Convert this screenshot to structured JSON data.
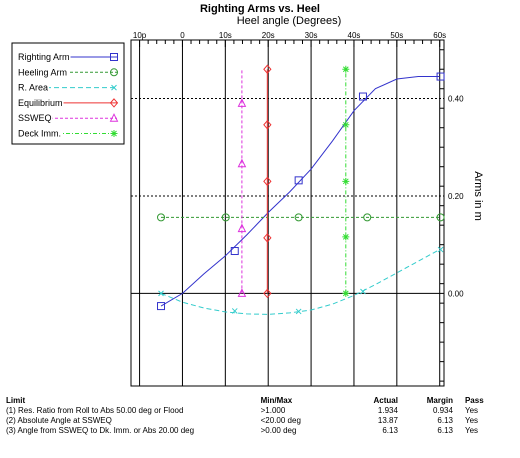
{
  "chart_data": {
    "type": "line",
    "title": "Righting Arms vs. Heel",
    "xlabel": "Heel angle (Degrees)",
    "ylabel": "Arms in m",
    "xlim": [
      -12,
      61
    ],
    "ylim": [
      -0.19,
      0.52
    ],
    "x_ticks": [
      {
        "value": -10,
        "label": "10p"
      },
      {
        "value": 0,
        "label": "0"
      },
      {
        "value": 10,
        "label": "10s"
      },
      {
        "value": 20,
        "label": "20s"
      },
      {
        "value": 30,
        "label": "30s"
      },
      {
        "value": 40,
        "label": "40s"
      },
      {
        "value": 50,
        "label": "50s"
      },
      {
        "value": 60,
        "label": "60s"
      }
    ],
    "y_ticks": [
      {
        "value": 0.0,
        "label": "0.00"
      },
      {
        "value": 0.2,
        "label": "0.20"
      },
      {
        "value": 0.4,
        "label": "0.40"
      }
    ],
    "grid": true,
    "legend_position": "top-left",
    "series": [
      {
        "name": "Righting Arm",
        "color": "#3333cc",
        "marker": "square",
        "dash": "",
        "curve": [
          [
            -5,
            -0.026
          ],
          [
            0,
            0
          ],
          [
            5,
            0.04
          ],
          [
            10,
            0.077
          ],
          [
            15,
            0.12
          ],
          [
            20,
            0.166
          ],
          [
            25,
            0.208
          ],
          [
            30,
            0.255
          ],
          [
            35,
            0.313
          ],
          [
            40,
            0.375
          ],
          [
            45,
            0.42
          ],
          [
            50,
            0.44
          ],
          [
            55,
            0.445
          ],
          [
            60,
            0.445
          ]
        ],
        "markers": [
          [
            -5,
            -0.026
          ],
          [
            12.2,
            0.087
          ],
          [
            27.1,
            0.232
          ],
          [
            42.1,
            0.404
          ],
          [
            60.2,
            0.445
          ]
        ]
      },
      {
        "name": "Heeling Arm",
        "color": "#339933",
        "marker": "circle",
        "dash": "3,2",
        "curve": [
          [
            -5,
            0.156
          ],
          [
            60,
            0.156
          ]
        ],
        "markers": [
          [
            -5,
            0.156
          ],
          [
            10.1,
            0.156
          ],
          [
            27.1,
            0.156
          ],
          [
            43.1,
            0.156
          ],
          [
            60.2,
            0.156
          ]
        ]
      },
      {
        "name": "R. Area",
        "color": "#33cccc",
        "marker": "x",
        "dash": "5,3",
        "curve": [
          [
            -5,
            0
          ],
          [
            0,
            -0.018
          ],
          [
            5,
            -0.03
          ],
          [
            10,
            -0.038
          ],
          [
            15,
            -0.042
          ],
          [
            20,
            -0.043
          ],
          [
            25,
            -0.04
          ],
          [
            30,
            -0.034
          ],
          [
            35,
            -0.022
          ],
          [
            40,
            -0.004
          ],
          [
            45,
            0.018
          ],
          [
            50,
            0.042
          ],
          [
            55,
            0.066
          ],
          [
            60,
            0.09
          ]
        ],
        "markers": [
          [
            -5,
            0
          ],
          [
            12.2,
            -0.036
          ],
          [
            27.1,
            -0.037
          ],
          [
            42.1,
            0.004
          ],
          [
            60.2,
            0.09
          ]
        ]
      },
      {
        "name": "Equilibrium",
        "color": "#ee3333",
        "marker": "diamond",
        "dash": "",
        "curve": [
          [
            19.8,
            0
          ],
          [
            19.8,
            0.46
          ]
        ],
        "markers": [
          [
            19.8,
            0
          ],
          [
            19.8,
            0.114
          ],
          [
            19.8,
            0.23
          ],
          [
            19.8,
            0.346
          ],
          [
            19.8,
            0.46
          ]
        ]
      },
      {
        "name": "SSWEQ",
        "color": "#dd33dd",
        "marker": "triangle",
        "dash": "3,2",
        "curve": [
          [
            13.87,
            0
          ],
          [
            13.87,
            0.46
          ]
        ],
        "markers": [
          [
            13.87,
            0
          ],
          [
            13.87,
            0.133
          ],
          [
            13.87,
            0.266
          ],
          [
            13.87,
            0.39
          ]
        ]
      },
      {
        "name": "Deck Imm.",
        "color": "#33dd33",
        "marker": "asterisk",
        "dash": "4,2,1,2",
        "curve": [
          [
            38.1,
            0
          ],
          [
            38.1,
            0.46
          ]
        ],
        "markers": [
          [
            38.1,
            0
          ],
          [
            38.1,
            0.116
          ],
          [
            38.1,
            0.23
          ],
          [
            38.1,
            0.346
          ],
          [
            38.1,
            0.46
          ]
        ]
      }
    ]
  },
  "criteria": {
    "headers": {
      "limit": "Limit",
      "minmax": "Min/Max",
      "actual": "Actual",
      "margin": "Margin",
      "pass": "Pass"
    },
    "rows": [
      {
        "limit": "(1) Res. Ratio from Roll to Abs 50.00 deg or Flood",
        "minmax": ">1.000",
        "actual": "1.934",
        "margin": "0.934",
        "pass": "Yes"
      },
      {
        "limit": "(2) Absolute Angle at SSWEQ",
        "minmax": "<20.00 deg",
        "actual": "13.87",
        "margin": "6.13",
        "pass": "Yes"
      },
      {
        "limit": "(3) Angle from SSWEQ to Dk. Imm. or Abs 20.00 deg",
        "minmax": ">0.00 deg",
        "actual": "6.13",
        "margin": "6.13",
        "pass": "Yes"
      }
    ]
  }
}
